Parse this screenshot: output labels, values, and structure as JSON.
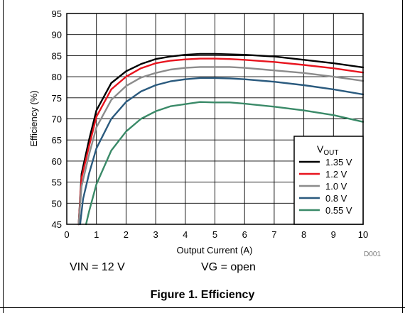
{
  "chart_data": {
    "type": "line",
    "title": "",
    "xlabel": "Output Current (A)",
    "ylabel": "Efficiency (%)",
    "xlim": [
      0,
      10
    ],
    "ylim": [
      45,
      95
    ],
    "xticks": [
      "0",
      "1",
      "2",
      "3",
      "4",
      "5",
      "6",
      "7",
      "8",
      "9",
      "10"
    ],
    "yticks": [
      "45",
      "50",
      "55",
      "60",
      "65",
      "70",
      "75",
      "80",
      "85",
      "90",
      "95"
    ],
    "grid": true,
    "legend_position": "bottom-right",
    "legend_title_main": "V",
    "legend_title_sub": "OUT",
    "watermark": "D001",
    "series": [
      {
        "name": "1.35 V",
        "color": "#000000",
        "x": [
          0.4,
          0.5,
          0.75,
          1.0,
          1.5,
          2.0,
          2.5,
          3.0,
          3.5,
          4.0,
          4.5,
          5.0,
          5.5,
          6.0,
          7.0,
          8.0,
          9.0,
          10.0
        ],
        "y": [
          45,
          57,
          65,
          72,
          78.5,
          81.3,
          83,
          84.2,
          84.8,
          85.2,
          85.4,
          85.4,
          85.3,
          85.2,
          84.8,
          84,
          83.2,
          82.2
        ]
      },
      {
        "name": "1.2 V",
        "color": "#e8141e",
        "x": [
          0.4,
          0.5,
          0.75,
          1.0,
          1.5,
          2.0,
          2.5,
          3.0,
          3.5,
          4.0,
          4.5,
          5.0,
          5.5,
          6.0,
          7.0,
          8.0,
          9.0,
          10.0
        ],
        "y": [
          45,
          56,
          63.5,
          70.5,
          77,
          80,
          82,
          83.2,
          83.8,
          84.1,
          84.3,
          84.3,
          84.2,
          84,
          83.5,
          82.8,
          82,
          81
        ]
      },
      {
        "name": "1.0 V",
        "color": "#8c8c8c",
        "x": [
          0.4,
          0.5,
          0.75,
          1.0,
          1.5,
          2.0,
          2.5,
          3.0,
          3.5,
          4.0,
          4.5,
          5.0,
          5.5,
          6.0,
          7.0,
          8.0,
          9.0,
          10.0
        ],
        "y": [
          45,
          54,
          61.5,
          68,
          74.5,
          77.8,
          79.8,
          80.9,
          81.7,
          82.1,
          82.3,
          82.3,
          82.3,
          82.1,
          81.5,
          80.9,
          80,
          79
        ]
      },
      {
        "name": "0.8 V",
        "color": "#2a5a7e",
        "x": [
          0.45,
          0.55,
          0.75,
          1.0,
          1.5,
          2.0,
          2.5,
          3.0,
          3.5,
          4.0,
          4.5,
          5.0,
          5.5,
          6.0,
          7.0,
          8.0,
          9.0,
          10.0
        ],
        "y": [
          45,
          51,
          57,
          63,
          70,
          74,
          76.5,
          78,
          78.9,
          79.4,
          79.7,
          79.7,
          79.6,
          79.4,
          78.8,
          78,
          77,
          75.8
        ]
      },
      {
        "name": "0.55 V",
        "color": "#3a8a68",
        "x": [
          0.65,
          0.75,
          1.0,
          1.5,
          2.0,
          2.5,
          3.0,
          3.5,
          4.0,
          4.5,
          5.0,
          5.5,
          6.0,
          7.0,
          8.0,
          9.0,
          10.0
        ],
        "y": [
          45,
          48,
          54.5,
          62.5,
          67,
          70,
          71.8,
          73,
          73.5,
          74,
          73.9,
          73.9,
          73.6,
          72.9,
          72,
          70.9,
          69.3
        ]
      }
    ]
  },
  "captions": {
    "vin": "VIN = 12 V",
    "vg": "VG = open",
    "figure": "Figure 1. Efficiency"
  }
}
